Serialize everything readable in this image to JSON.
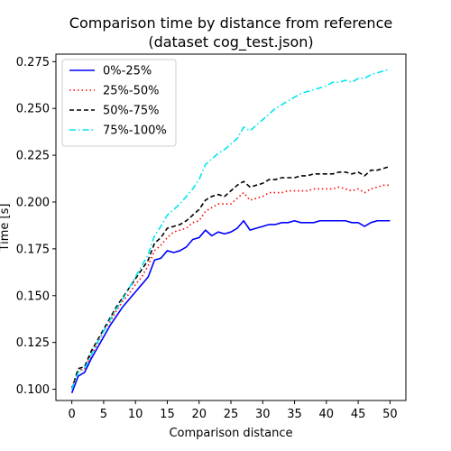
{
  "chart_data": {
    "type": "line",
    "title": "Comparison time by distance from reference",
    "subtitle": "(dataset cog_test.json)",
    "xlabel": "Comparison distance",
    "ylabel": "Time [s]",
    "xlim": [
      -2.5,
      52.5
    ],
    "ylim": [
      0.094,
      0.279
    ],
    "xticks": [
      0,
      5,
      10,
      15,
      20,
      25,
      30,
      35,
      40,
      45,
      50
    ],
    "xtick_labels": [
      "0",
      "5",
      "10",
      "15",
      "20",
      "25",
      "30",
      "35",
      "40",
      "45",
      "50"
    ],
    "yticks": [
      0.1,
      0.125,
      0.15,
      0.175,
      0.2,
      0.225,
      0.25,
      0.275
    ],
    "ytick_labels": [
      "0.100",
      "0.125",
      "0.150",
      "0.175",
      "0.200",
      "0.225",
      "0.250",
      "0.275"
    ],
    "grid": false,
    "legend_position": "top-left",
    "x": [
      0,
      1,
      2,
      3,
      4,
      5,
      6,
      7,
      8,
      9,
      10,
      11,
      12,
      13,
      14,
      15,
      16,
      17,
      18,
      19,
      20,
      21,
      22,
      23,
      24,
      25,
      26,
      27,
      28,
      29,
      30,
      31,
      32,
      33,
      34,
      35,
      36,
      37,
      38,
      39,
      40,
      41,
      42,
      43,
      44,
      45,
      46,
      47,
      48,
      49,
      50
    ],
    "series": [
      {
        "name": "0%-25%",
        "color": "#0000ff",
        "dash": "solid",
        "values": [
          0.098,
          0.107,
          0.109,
          0.116,
          0.122,
          0.128,
          0.134,
          0.139,
          0.144,
          0.148,
          0.152,
          0.156,
          0.16,
          0.169,
          0.17,
          0.174,
          0.173,
          0.174,
          0.176,
          0.18,
          0.181,
          0.185,
          0.182,
          0.184,
          0.183,
          0.184,
          0.186,
          0.19,
          0.185,
          0.186,
          0.187,
          0.188,
          0.188,
          0.189,
          0.189,
          0.19,
          0.189,
          0.189,
          0.189,
          0.19,
          0.19,
          0.19,
          0.19,
          0.19,
          0.189,
          0.189,
          0.187,
          0.189,
          0.19,
          0.19,
          0.19
        ]
      },
      {
        "name": "25%-50%",
        "color": "#ff0000",
        "dash": "dotted",
        "values": [
          0.101,
          0.11,
          0.111,
          0.118,
          0.124,
          0.131,
          0.136,
          0.142,
          0.147,
          0.151,
          0.156,
          0.16,
          0.166,
          0.174,
          0.177,
          0.181,
          0.184,
          0.185,
          0.186,
          0.189,
          0.19,
          0.195,
          0.197,
          0.199,
          0.199,
          0.199,
          0.202,
          0.205,
          0.201,
          0.202,
          0.203,
          0.205,
          0.205,
          0.205,
          0.206,
          0.206,
          0.206,
          0.206,
          0.207,
          0.207,
          0.207,
          0.207,
          0.208,
          0.207,
          0.206,
          0.207,
          0.205,
          0.207,
          0.208,
          0.209,
          0.209
        ]
      },
      {
        "name": "50%-75%",
        "color": "#000000",
        "dash": "dashed",
        "values": [
          0.1,
          0.111,
          0.112,
          0.12,
          0.126,
          0.132,
          0.138,
          0.144,
          0.149,
          0.154,
          0.159,
          0.164,
          0.169,
          0.178,
          0.181,
          0.186,
          0.187,
          0.188,
          0.19,
          0.193,
          0.196,
          0.201,
          0.203,
          0.204,
          0.203,
          0.206,
          0.209,
          0.211,
          0.208,
          0.209,
          0.21,
          0.212,
          0.212,
          0.213,
          0.213,
          0.213,
          0.214,
          0.214,
          0.215,
          0.215,
          0.215,
          0.215,
          0.216,
          0.216,
          0.215,
          0.216,
          0.214,
          0.217,
          0.217,
          0.218,
          0.219
        ]
      },
      {
        "name": "75%-100%",
        "color": "#00e5ee",
        "dash": "dashdot",
        "values": [
          0.1,
          0.109,
          0.111,
          0.118,
          0.125,
          0.131,
          0.137,
          0.143,
          0.148,
          0.154,
          0.16,
          0.166,
          0.172,
          0.182,
          0.187,
          0.193,
          0.196,
          0.199,
          0.203,
          0.207,
          0.212,
          0.22,
          0.223,
          0.226,
          0.228,
          0.231,
          0.234,
          0.24,
          0.238,
          0.241,
          0.244,
          0.247,
          0.25,
          0.252,
          0.254,
          0.256,
          0.258,
          0.259,
          0.26,
          0.261,
          0.262,
          0.264,
          0.264,
          0.265,
          0.264,
          0.266,
          0.266,
          0.268,
          0.269,
          0.27,
          0.271
        ]
      }
    ]
  }
}
